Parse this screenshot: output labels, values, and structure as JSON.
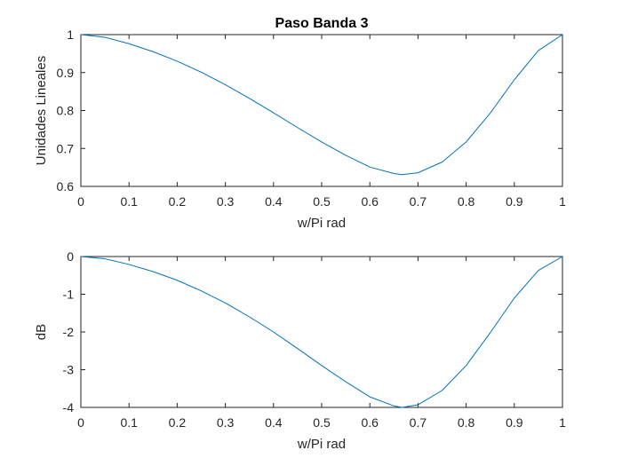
{
  "chart_data": [
    {
      "type": "line",
      "title": "Paso Banda 3",
      "xlabel": "w/Pi rad",
      "ylabel": "Unidades Lineales",
      "xlim": [
        0,
        1
      ],
      "ylim": [
        0.6,
        1
      ],
      "xticks": [
        "0",
        "0.1",
        "0.2",
        "0.3",
        "0.4",
        "0.5",
        "0.6",
        "0.7",
        "0.8",
        "0.9",
        "1"
      ],
      "yticks": [
        "0.6",
        "0.7",
        "0.8",
        "0.9",
        "1"
      ],
      "grid": false,
      "color": "#0072BD",
      "series": [
        {
          "x": [
            0,
            0.05,
            0.1,
            0.15,
            0.2,
            0.25,
            0.3,
            0.35,
            0.4,
            0.45,
            0.5,
            0.55,
            0.6,
            0.65,
            0.667,
            0.7,
            0.75,
            0.8,
            0.85,
            0.9,
            0.95,
            1
          ],
          "y": [
            1,
            0.993,
            0.976,
            0.955,
            0.93,
            0.901,
            0.868,
            0.832,
            0.794,
            0.755,
            0.717,
            0.682,
            0.651,
            0.634,
            0.631,
            0.636,
            0.664,
            0.717,
            0.793,
            0.881,
            0.958,
            1
          ]
        }
      ]
    },
    {
      "type": "line",
      "title": "",
      "xlabel": "w/Pi rad",
      "ylabel": "dB",
      "xlim": [
        0,
        1
      ],
      "ylim": [
        -4,
        0
      ],
      "xticks": [
        "0",
        "0.1",
        "0.2",
        "0.3",
        "0.4",
        "0.5",
        "0.6",
        "0.7",
        "0.8",
        "0.9",
        "1"
      ],
      "yticks": [
        "-4",
        "-3",
        "-2",
        "-1",
        "0"
      ],
      "grid": false,
      "color": "#0072BD",
      "series": [
        {
          "x": [
            0,
            0.05,
            0.1,
            0.15,
            0.2,
            0.25,
            0.3,
            0.35,
            0.4,
            0.45,
            0.5,
            0.55,
            0.6,
            0.65,
            0.667,
            0.7,
            0.75,
            0.8,
            0.85,
            0.9,
            0.95,
            1
          ],
          "y": [
            0,
            -0.06,
            -0.21,
            -0.4,
            -0.63,
            -0.91,
            -1.23,
            -1.6,
            -2.0,
            -2.44,
            -2.89,
            -3.32,
            -3.72,
            -3.96,
            -4.0,
            -3.93,
            -3.55,
            -2.89,
            -2.02,
            -1.1,
            -0.37,
            0
          ]
        }
      ]
    }
  ]
}
